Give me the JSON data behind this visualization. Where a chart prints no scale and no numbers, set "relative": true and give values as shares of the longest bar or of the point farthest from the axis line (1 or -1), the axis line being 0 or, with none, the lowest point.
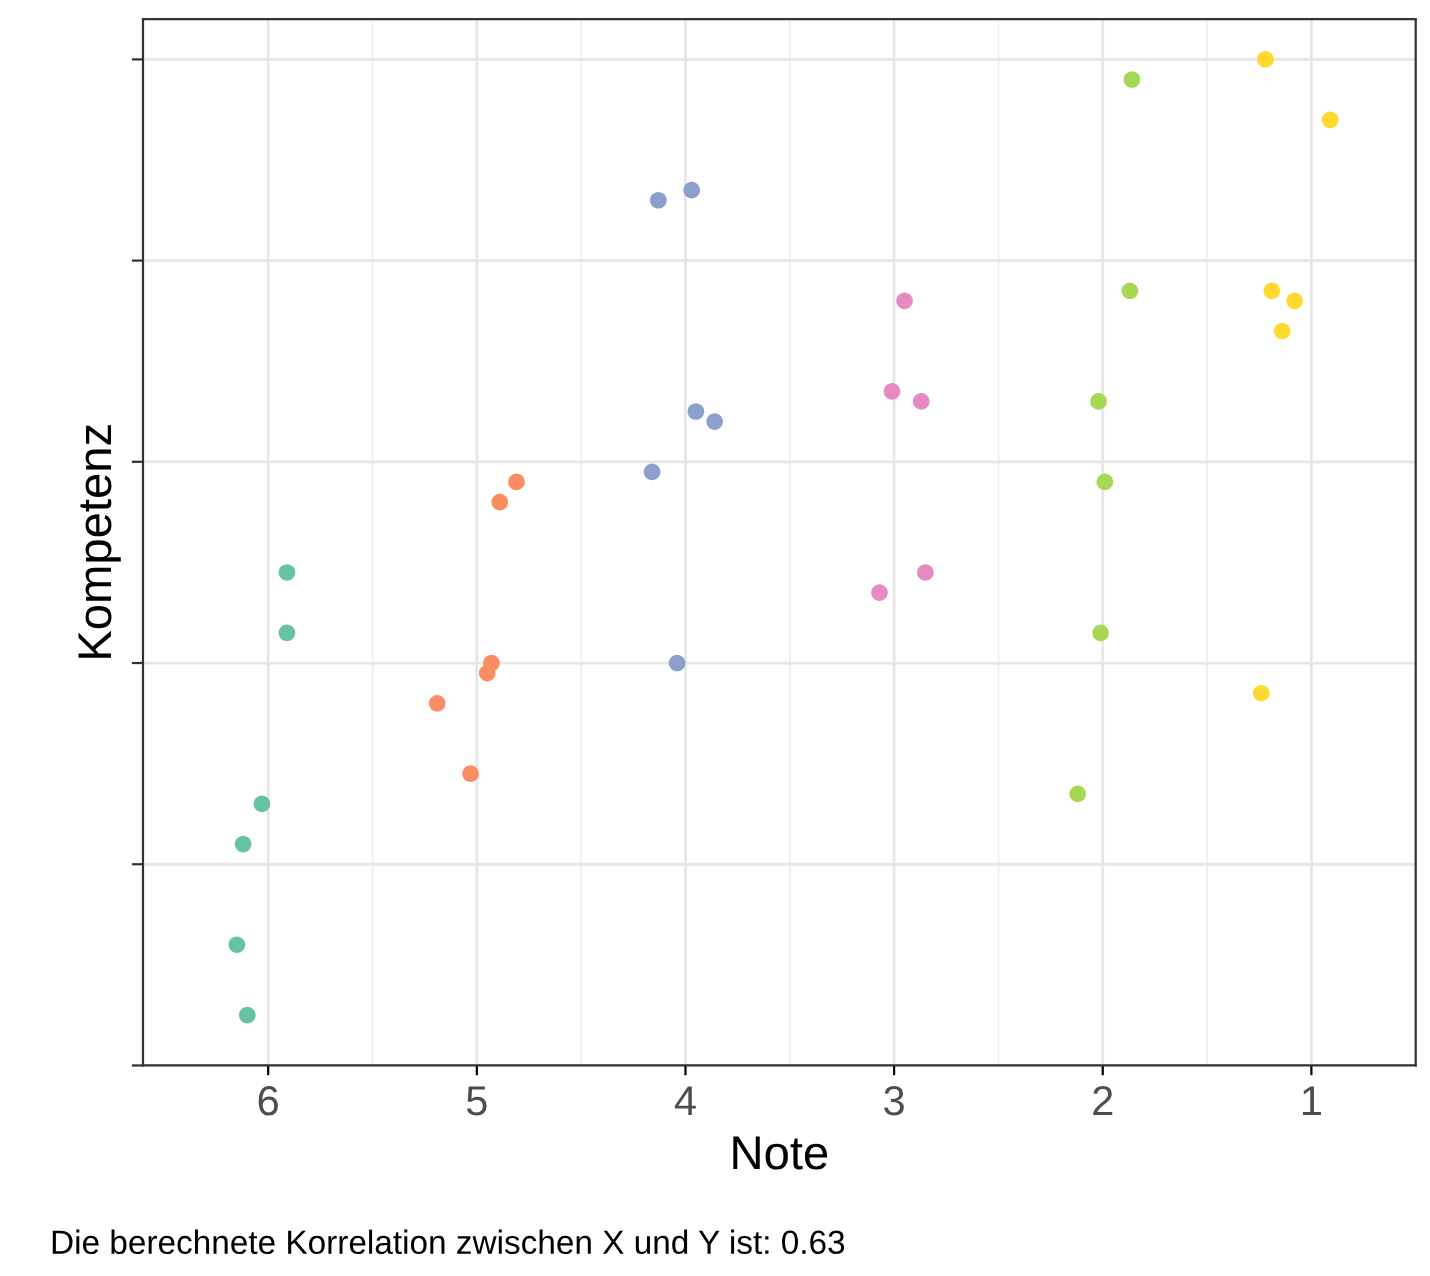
{
  "chart_data": {
    "type": "scatter",
    "xlabel": "Note",
    "ylabel": "Kompetenz",
    "relative": true,
    "xlim": [
      6.6,
      0.5
    ],
    "xticks": [
      6,
      5,
      4,
      3,
      2,
      1
    ],
    "grid": true,
    "marker": "circle",
    "annotations": [
      "Die berechnete Korrelation zwischen X und Y ist: 0.63"
    ],
    "series": [
      {
        "color": "#66c2a5",
        "x": [
          5.91,
          5.91,
          6.03,
          6.12,
          6.15,
          6.1
        ],
        "values": [
          0.49,
          0.43,
          0.26,
          0.22,
          0.12,
          0.05
        ]
      },
      {
        "color": "#fc8d62",
        "x": [
          4.81,
          4.89,
          4.93,
          4.95,
          5.19,
          5.03
        ],
        "values": [
          0.58,
          0.56,
          0.4,
          0.39,
          0.36,
          0.29
        ]
      },
      {
        "color": "#8da0cb",
        "x": [
          4.13,
          3.97,
          3.95,
          3.86,
          4.16,
          4.04
        ],
        "values": [
          0.86,
          0.87,
          0.65,
          0.64,
          0.59,
          0.4
        ]
      },
      {
        "color": "#e78ac3",
        "x": [
          2.95,
          3.01,
          2.87,
          3.07,
          2.85
        ],
        "values": [
          0.76,
          0.67,
          0.66,
          0.47,
          0.49
        ]
      },
      {
        "color": "#a6d854",
        "x": [
          1.86,
          1.87,
          2.02,
          1.99,
          2.01,
          2.12
        ],
        "values": [
          0.98,
          0.77,
          0.66,
          0.58,
          0.43,
          0.27
        ]
      },
      {
        "color": "#ffd92f",
        "x": [
          1.22,
          0.91,
          1.19,
          1.08,
          1.14,
          1.24
        ],
        "values": [
          1.0,
          0.94,
          0.77,
          0.76,
          0.73,
          0.37
        ]
      }
    ]
  }
}
